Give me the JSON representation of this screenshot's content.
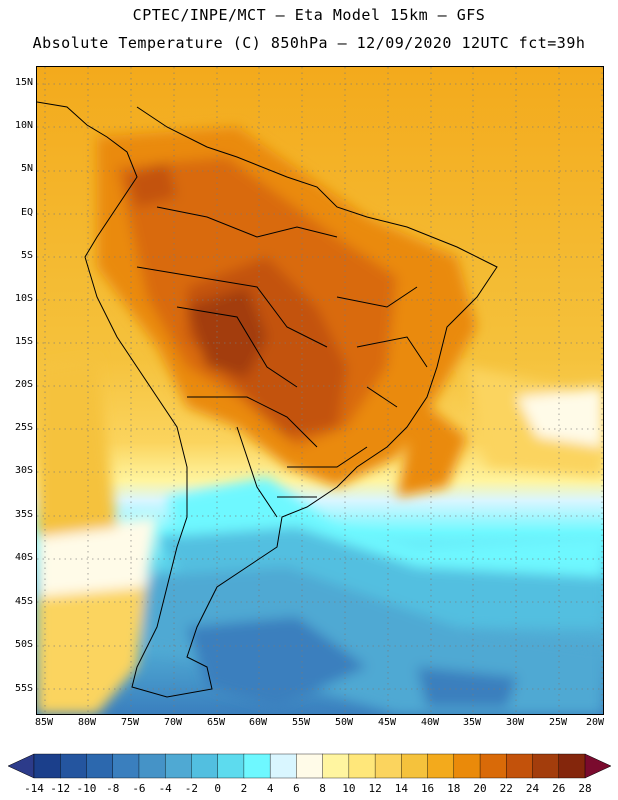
{
  "header": {
    "title_line1": "CPTEC/INPE/MCT –  Eta Model 15km – GFS",
    "title_line2": "Absolute Temperature (C) 850hPa – 12/09/2020 12UTC fct=39h"
  },
  "map": {
    "lat_labels": [
      "15N",
      "10N",
      "5N",
      "EQ",
      "5S",
      "10S",
      "15S",
      "20S",
      "25S",
      "30S",
      "35S",
      "40S",
      "45S",
      "50S",
      "55S"
    ],
    "lon_labels": [
      "85W",
      "80W",
      "75W",
      "70W",
      "65W",
      "60W",
      "55W",
      "50W",
      "45W",
      "40W",
      "35W",
      "30W",
      "25W",
      "20W"
    ],
    "grid": "dotted"
  },
  "legend": {
    "ticks": [
      "-14",
      "-12",
      "-10",
      "-8",
      "-6",
      "-4",
      "-2",
      "0",
      "2",
      "4",
      "6",
      "8",
      "10",
      "12",
      "14",
      "16",
      "18",
      "20",
      "22",
      "24",
      "26",
      "28"
    ],
    "colors": [
      "#1b3f8b",
      "#24559f",
      "#2c68ae",
      "#3a7fbe",
      "#4593c7",
      "#4fa9d3",
      "#52bfe0",
      "#5ddbee",
      "#6ef8ff",
      "#d9f6ff",
      "#fffbe8",
      "#fff5a0",
      "#ffe77a",
      "#fbd45e",
      "#f5c23c",
      "#f3aa1c",
      "#ea8a0a",
      "#d96a08",
      "#c3520b",
      "#a33d0c",
      "#84260c"
    ],
    "low_arrow_color": "#2c3b8a",
    "high_arrow_color": "#7a0b2e"
  }
}
